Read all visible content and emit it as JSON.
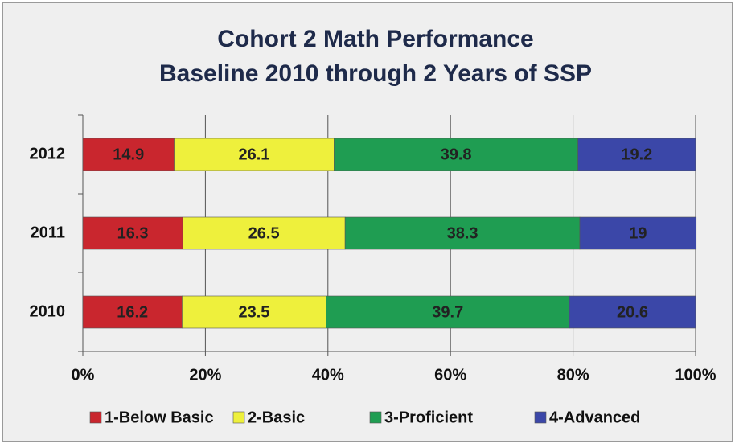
{
  "chart_data": {
    "type": "stacked_bar_horizontal",
    "title": "Cohort 2 Math Performance",
    "subtitle": "Baseline 2010 through 2 Years of SSP",
    "categories": [
      "2012",
      "2011",
      "2010"
    ],
    "series": [
      {
        "name": "1-Below Basic",
        "color": "#c9262e",
        "values": [
          14.9,
          16.3,
          16.2
        ]
      },
      {
        "name": "2-Basic",
        "color": "#eef03c",
        "values": [
          26.1,
          26.5,
          23.5
        ]
      },
      {
        "name": "3-Proficient",
        "color": "#1f9d52",
        "values": [
          39.8,
          38.3,
          39.7
        ]
      },
      {
        "name": "4-Advanced",
        "color": "#3b47a8",
        "values": [
          19.2,
          19,
          20.6
        ]
      }
    ],
    "xlim": [
      0,
      100
    ],
    "xticks": [
      {
        "value": 0,
        "label": "0%"
      },
      {
        "value": 20,
        "label": "20%"
      },
      {
        "value": 40,
        "label": "40%"
      },
      {
        "value": 60,
        "label": "60%"
      },
      {
        "value": 80,
        "label": "80%"
      },
      {
        "value": 100,
        "label": "100%"
      }
    ],
    "grid": true,
    "legend": "bottom"
  }
}
